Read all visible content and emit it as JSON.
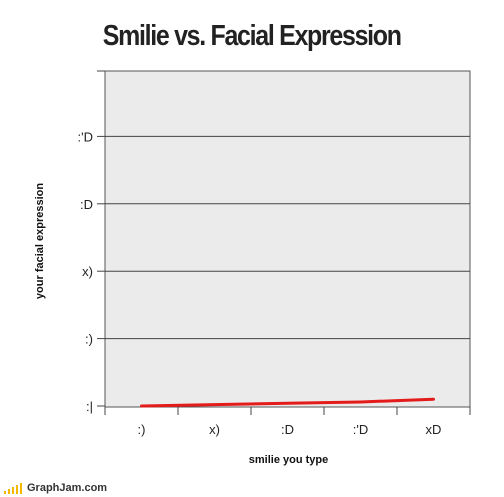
{
  "chart_data": {
    "type": "line",
    "title": "Smilie vs. Facial Expression",
    "xlabel": "smilie you type",
    "ylabel": "your facial expression",
    "categories": [
      ":)",
      "x)",
      ":D",
      ":'D",
      "xD"
    ],
    "y_ticks": [
      ":|",
      ":)",
      "x)",
      ":D",
      ":'D"
    ],
    "series": [
      {
        "values": [
          0.0,
          0.02,
          0.04,
          0.06,
          0.1
        ],
        "color": "#e41b1b"
      }
    ],
    "ylim": [
      0,
      4.5
    ],
    "grid": true,
    "plot_background": "#ebebeb",
    "legend": "none"
  },
  "footer": {
    "site": "GraphJam.com",
    "logo_color": "#f2b800"
  }
}
